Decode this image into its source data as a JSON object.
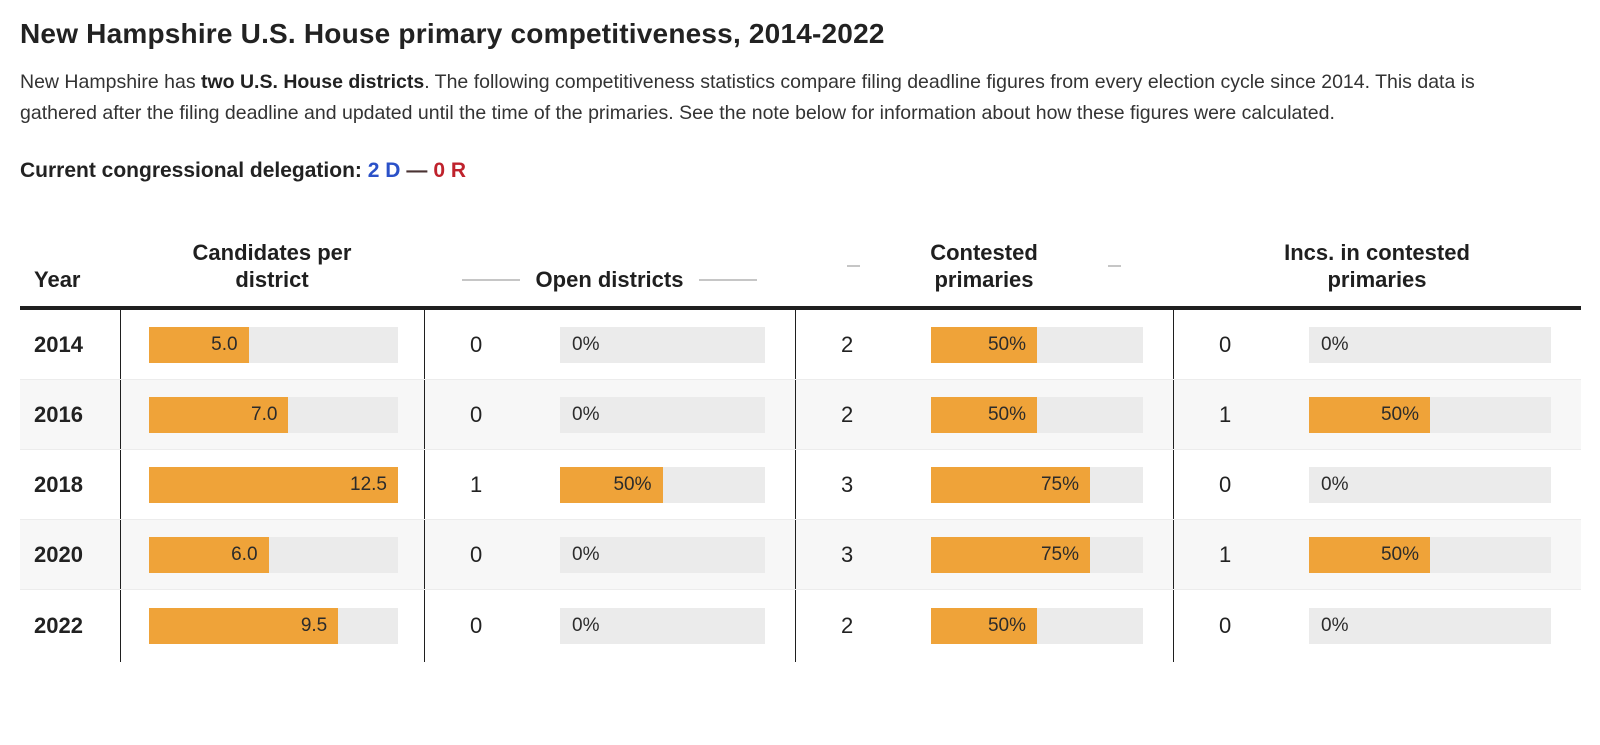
{
  "page": {
    "title": "New Hampshire U.S. House primary competitiveness, 2014-2022",
    "intro": {
      "prefix": "New Hampshire has ",
      "bold": "two U.S. House districts",
      "suffix": ". The following competitiveness statistics compare filing deadline figures from every election cycle since 2014. This data is gathered after the filing deadline and updated until the time of the primaries. See the note below for information about how these figures were calculated."
    },
    "delegation": {
      "label": "Current congressional delegation:",
      "dem": "2 D",
      "separator": "—",
      "rep": "0 R",
      "dem_color": "#2b51c8",
      "rep_color": "#bf222c"
    }
  },
  "colors": {
    "bar_fill": "#efa339",
    "bar_track": "#ebebeb",
    "row_stripe": "#f7f7f7",
    "header_border": "#1f1f1f"
  },
  "table": {
    "header": {
      "year": "Year",
      "candidates": "Candidates per district",
      "open": "Open districts",
      "contested": "Contested primaries",
      "incs": "Incs. in contested primaries"
    },
    "rows": [
      {
        "year": "2014",
        "candidates": {
          "label": "5.0",
          "pct": 40
        },
        "open": {
          "count": "0",
          "label": "0%",
          "pct": 0
        },
        "contested": {
          "count": "2",
          "label": "50%",
          "pct": 50
        },
        "incs": {
          "count": "0",
          "label": "0%",
          "pct": 0
        }
      },
      {
        "year": "2016",
        "candidates": {
          "label": "7.0",
          "pct": 56
        },
        "open": {
          "count": "0",
          "label": "0%",
          "pct": 0
        },
        "contested": {
          "count": "2",
          "label": "50%",
          "pct": 50
        },
        "incs": {
          "count": "1",
          "label": "50%",
          "pct": 50
        }
      },
      {
        "year": "2018",
        "candidates": {
          "label": "12.5",
          "pct": 100
        },
        "open": {
          "count": "1",
          "label": "50%",
          "pct": 50
        },
        "contested": {
          "count": "3",
          "label": "75%",
          "pct": 75
        },
        "incs": {
          "count": "0",
          "label": "0%",
          "pct": 0
        }
      },
      {
        "year": "2020",
        "candidates": {
          "label": "6.0",
          "pct": 48
        },
        "open": {
          "count": "0",
          "label": "0%",
          "pct": 0
        },
        "contested": {
          "count": "3",
          "label": "75%",
          "pct": 75
        },
        "incs": {
          "count": "1",
          "label": "50%",
          "pct": 50
        }
      },
      {
        "year": "2022",
        "candidates": {
          "label": "9.5",
          "pct": 76
        },
        "open": {
          "count": "0",
          "label": "0%",
          "pct": 0
        },
        "contested": {
          "count": "2",
          "label": "50%",
          "pct": 50
        },
        "incs": {
          "count": "0",
          "label": "0%",
          "pct": 0
        }
      }
    ]
  },
  "chart_data": {
    "type": "table",
    "title": "New Hampshire U.S. House primary competitiveness, 2014-2022",
    "columns": [
      "Year",
      "Candidates per district",
      "Open districts (count)",
      "Open districts (%)",
      "Contested primaries (count)",
      "Contested primaries (%)",
      "Incs. in contested primaries (count)",
      "Incs. in contested primaries (%)"
    ],
    "rows": [
      [
        2014,
        5.0,
        0,
        "0%",
        2,
        "50%",
        0,
        "0%"
      ],
      [
        2016,
        7.0,
        0,
        "0%",
        2,
        "50%",
        1,
        "50%"
      ],
      [
        2018,
        12.5,
        1,
        "50%",
        3,
        "75%",
        0,
        "0%"
      ],
      [
        2020,
        6.0,
        0,
        "0%",
        3,
        "75%",
        1,
        "50%"
      ],
      [
        2022,
        9.5,
        0,
        "0%",
        2,
        "50%",
        0,
        "0%"
      ]
    ],
    "bar_scale": {
      "candidates_axis_max": 12.5,
      "percent_axis_max": 100
    },
    "legend_position": "none",
    "grid": false
  }
}
